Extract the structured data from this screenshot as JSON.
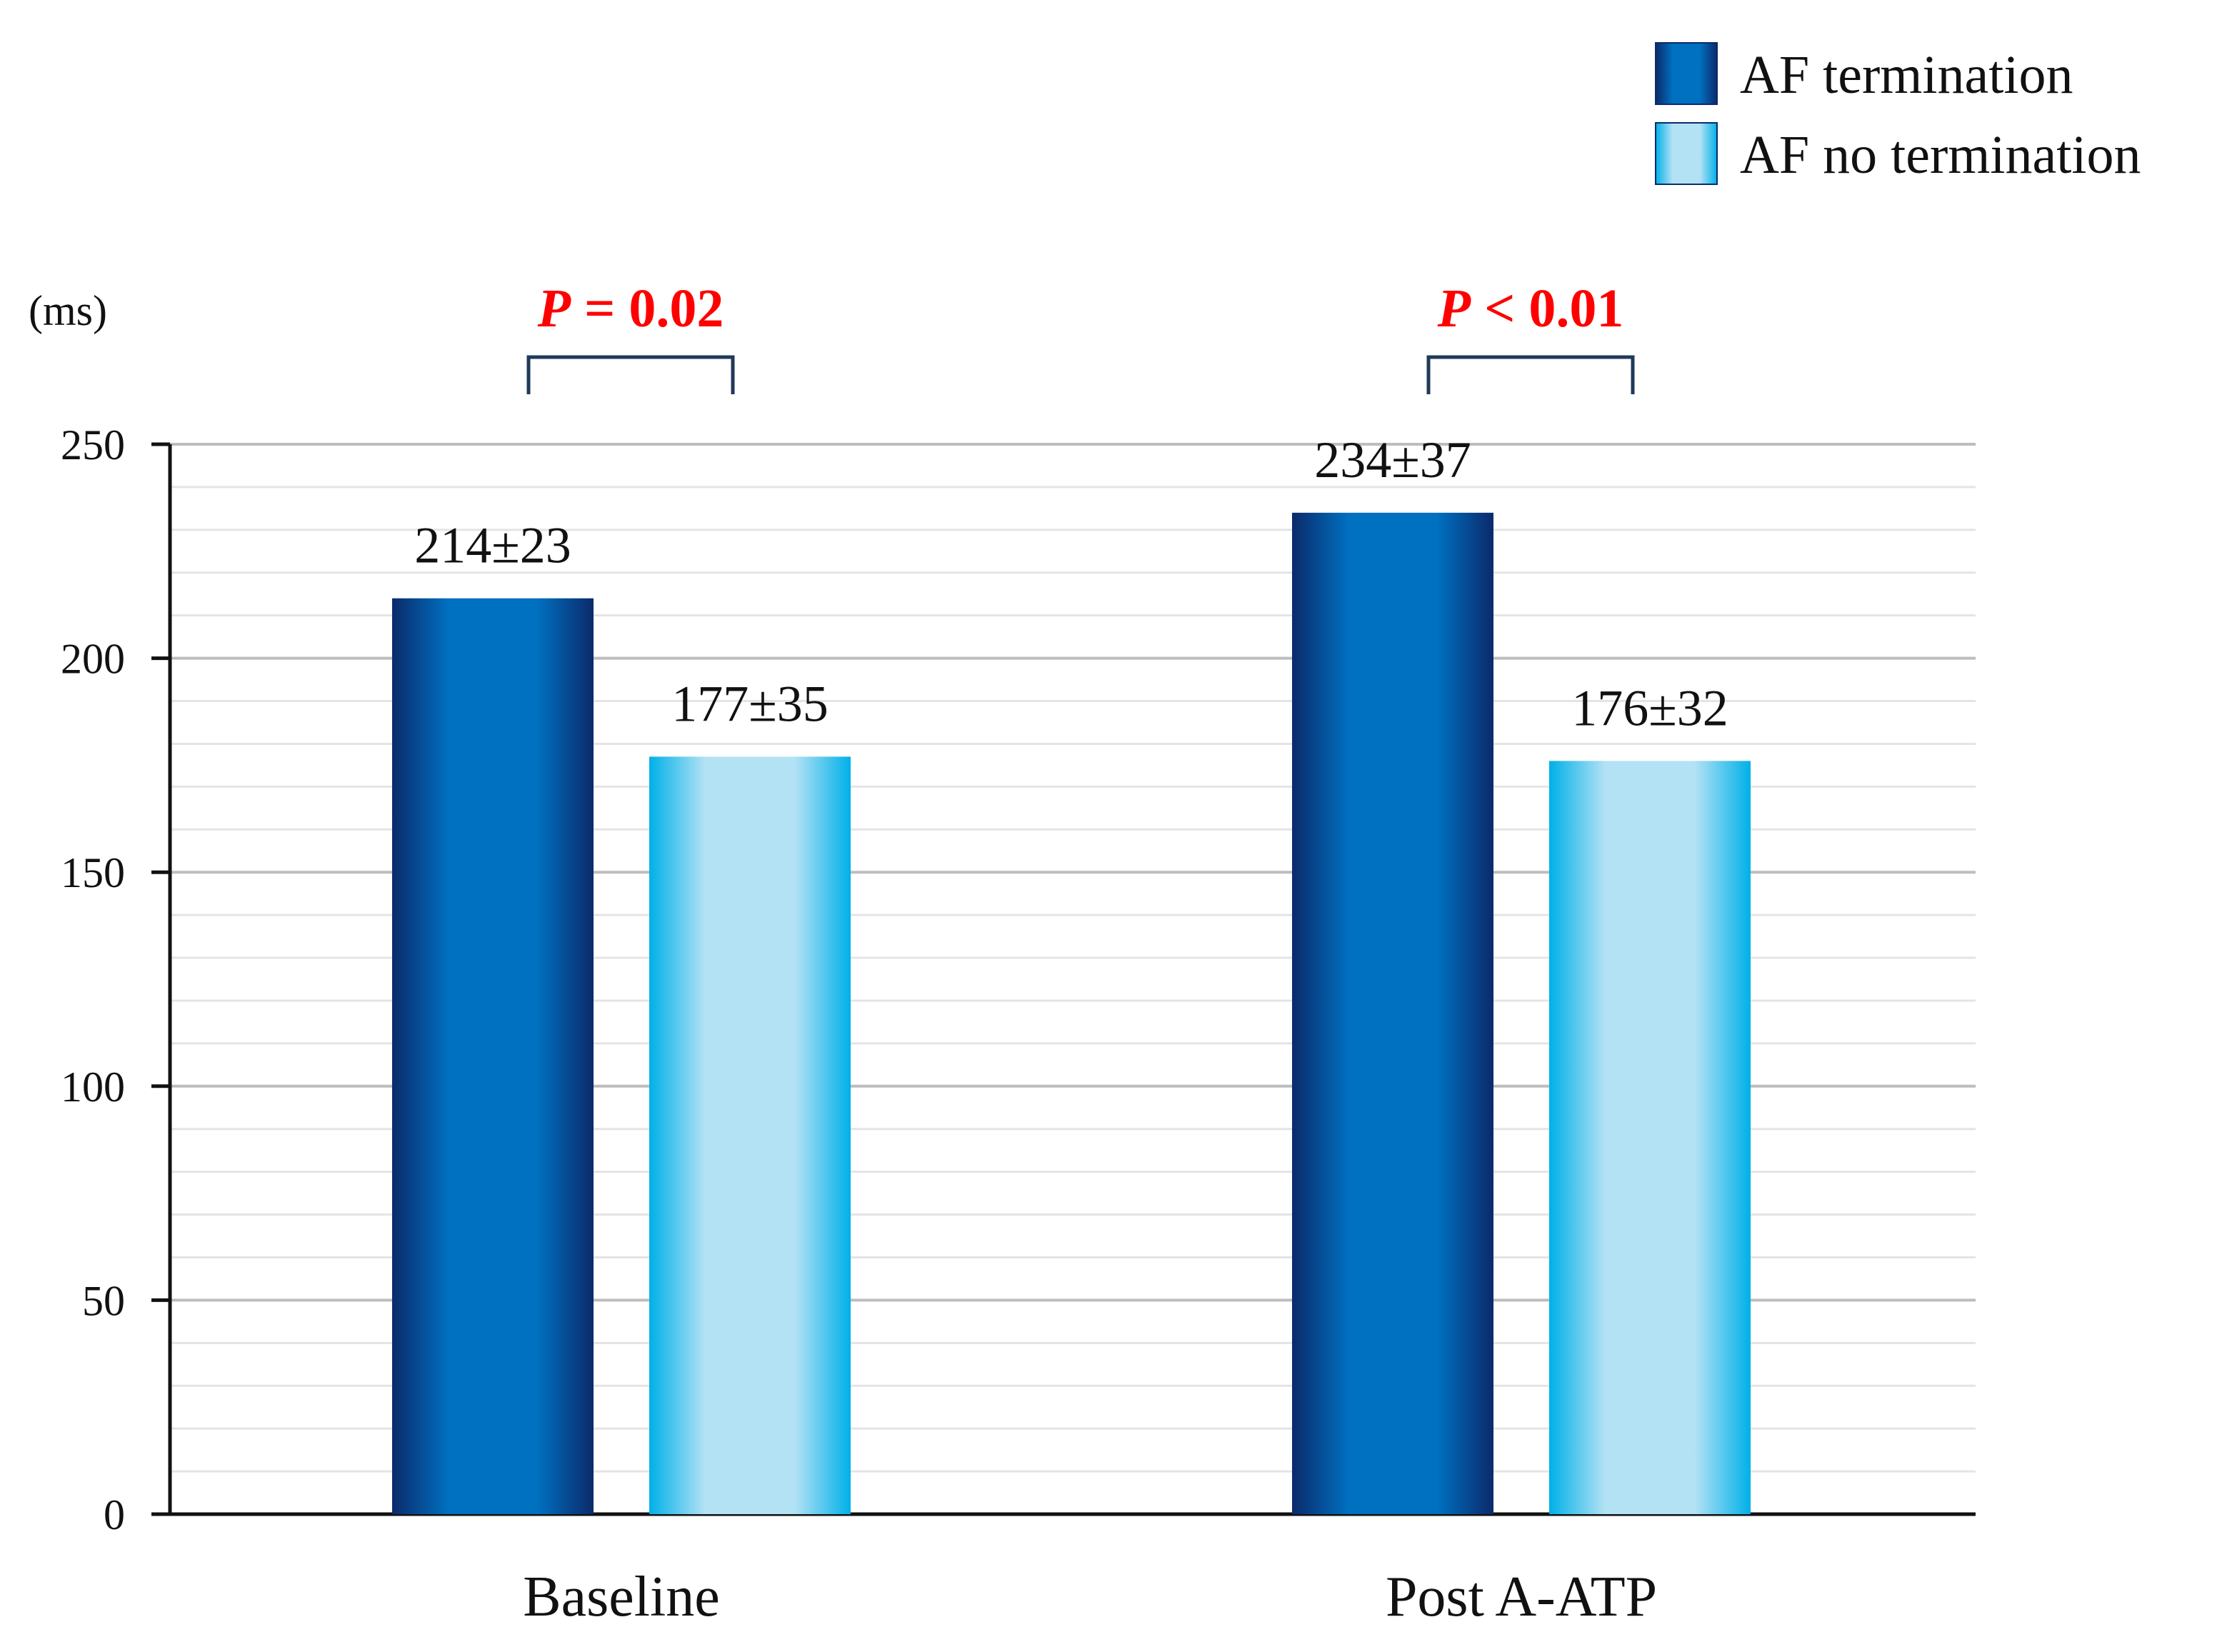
{
  "chart_data": {
    "type": "bar",
    "title": "",
    "unit_label": "(ms)",
    "xlabel": "",
    "ylabel": "",
    "ylim": [
      0,
      250
    ],
    "ytick_values": [
      0,
      50,
      100,
      150,
      200,
      250
    ],
    "ytick_labels": [
      "0",
      "50",
      "100",
      "150",
      "200",
      "250"
    ],
    "minor_grid_step": 10,
    "grid": true,
    "categories": [
      "Baseline",
      "Post A-ATP"
    ],
    "series": [
      {
        "name": "AF termination",
        "values": [
          214,
          234
        ],
        "labels": [
          "214±23",
          "234±37"
        ],
        "color_dark": "#0b2a6b",
        "color_mid": "#0070c0"
      },
      {
        "name": "AF no termination",
        "values": [
          177,
          176
        ],
        "labels": [
          "177±35",
          "176±32"
        ],
        "color_dark": "#00b0e8",
        "color_mid": "#b4e2f5"
      }
    ],
    "comparisons": [
      {
        "category": "Baseline",
        "p_symbol": "P",
        "p_rest": " = 0.02"
      },
      {
        "category": "Post A-ATP",
        "p_symbol": "P",
        "p_rest": " < 0.01"
      }
    ],
    "annotation_color": "#ff0000",
    "bracket_color": "#1f3a5a",
    "legend_position": "top-right"
  }
}
